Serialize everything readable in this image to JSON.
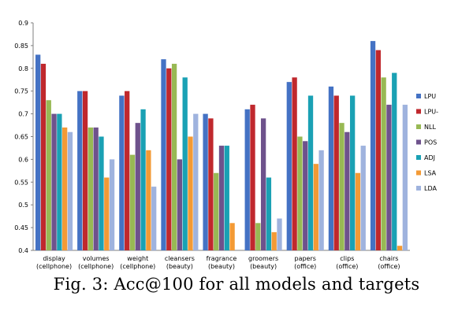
{
  "caption": "Fig. 3: Acc@100 for all models and targets",
  "chart_data": {
    "type": "bar",
    "title": "",
    "xlabel": "",
    "ylabel": "",
    "ylim": [
      0.4,
      0.9
    ],
    "yticks": [
      "0.4",
      "0.45",
      "0.5",
      "0.55",
      "0.6",
      "0.65",
      "0.7",
      "0.75",
      "0.8",
      "0.85",
      "0.9"
    ],
    "categories": [
      [
        "display",
        "(cellphone)"
      ],
      [
        "volumes",
        "(cellphone)"
      ],
      [
        "weight",
        "(cellphone)"
      ],
      [
        "cleansers",
        "(beauty)"
      ],
      [
        "fragrance",
        "(beauty)"
      ],
      [
        "groomers",
        "(beauty)"
      ],
      [
        "papers",
        "(office)"
      ],
      [
        "clips",
        "(office)"
      ],
      [
        "chairs",
        "(office)"
      ]
    ],
    "series": [
      {
        "name": "LPU",
        "color": "#4472c4",
        "values": [
          0.83,
          0.75,
          0.74,
          0.82,
          0.7,
          0.71,
          0.77,
          0.76,
          0.86
        ]
      },
      {
        "name": "LPU-",
        "color": "#c0282d",
        "values": [
          0.81,
          0.75,
          0.75,
          0.8,
          0.69,
          0.72,
          0.78,
          0.74,
          0.84
        ]
      },
      {
        "name": "NLL",
        "color": "#98b954",
        "values": [
          0.73,
          0.67,
          0.61,
          0.81,
          0.57,
          0.46,
          0.65,
          0.68,
          0.78
        ]
      },
      {
        "name": "POS",
        "color": "#6e528c",
        "values": [
          0.7,
          0.67,
          0.68,
          0.6,
          0.63,
          0.69,
          0.64,
          0.66,
          0.72
        ]
      },
      {
        "name": "ADJ",
        "color": "#1aa1b4",
        "values": [
          0.7,
          0.65,
          0.71,
          0.78,
          0.63,
          0.56,
          0.74,
          0.74,
          0.79
        ]
      },
      {
        "name": "LSA",
        "color": "#f39a35",
        "values": [
          0.67,
          0.56,
          0.62,
          0.65,
          0.46,
          0.44,
          0.59,
          0.57,
          0.41
        ]
      },
      {
        "name": "LDA",
        "color": "#9fb3de",
        "values": [
          0.66,
          0.6,
          0.54,
          0.7,
          0.4,
          0.47,
          0.62,
          0.63,
          0.72
        ]
      }
    ],
    "legend_position": "right"
  }
}
